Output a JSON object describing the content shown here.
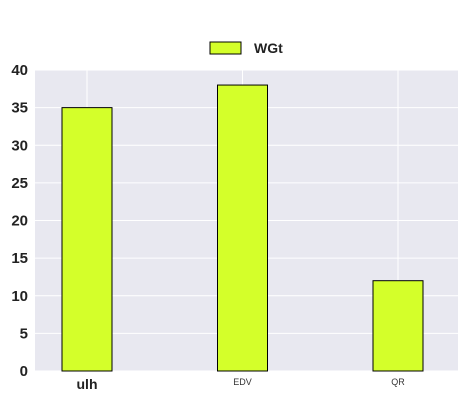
{
  "chart_data": {
    "type": "bar",
    "categories": [
      "ulh",
      "EDV",
      "QR"
    ],
    "series": [
      {
        "name": "WGt",
        "values": [
          35,
          38,
          12
        ]
      }
    ],
    "ylim": [
      0,
      40
    ],
    "yticks": [
      0,
      5,
      10,
      15,
      20,
      25,
      30,
      35,
      40
    ],
    "grid": true,
    "legend": "top-center",
    "colors": {
      "bar": "#d4ff2a",
      "bar_edge": "#000000",
      "plot_background": "#e8e8f0",
      "grid": "#ffffff"
    }
  }
}
